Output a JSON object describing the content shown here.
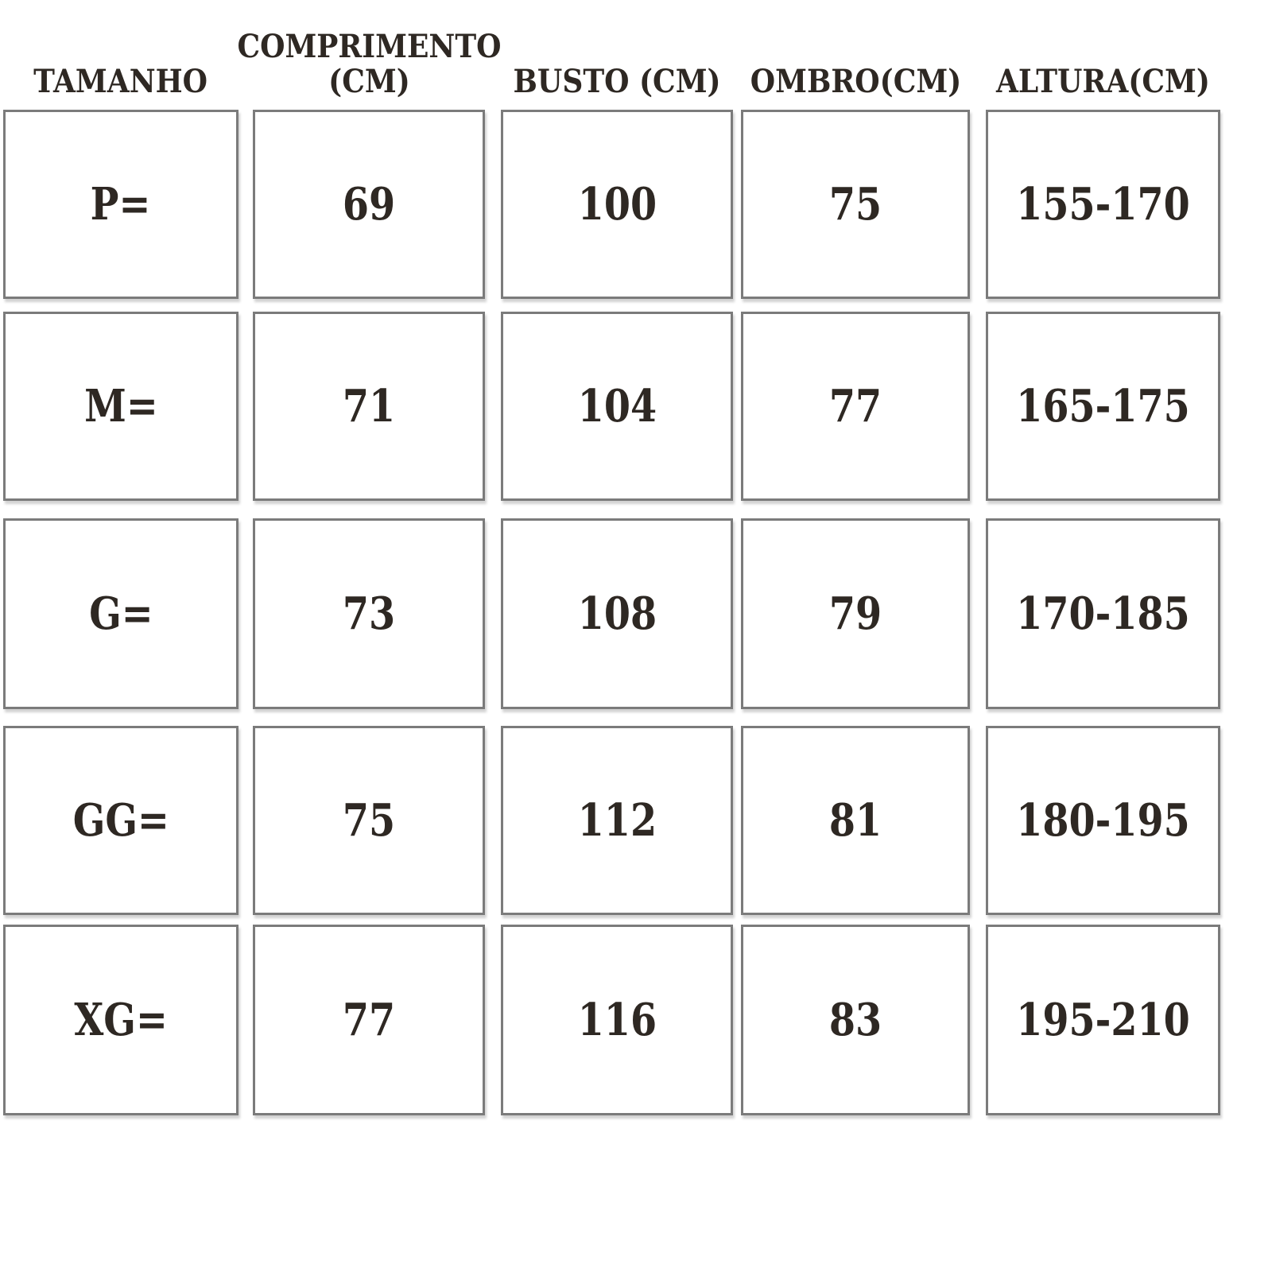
{
  "colors": {
    "text": "#2e2823",
    "border": "#7b7b7b",
    "cell_background": "#ffffff",
    "page_background": "#ffffff"
  },
  "chart_data": {
    "type": "table",
    "title": "",
    "columns": [
      "TAMANHO",
      "COMPRIMENTO\n(CM)",
      "BUSTO (CM)",
      "OMBRO(CM)",
      "ALTURA(CM)"
    ],
    "column_keys": [
      "tamanho",
      "comprimento",
      "busto",
      "ombro",
      "altura"
    ],
    "rows": [
      [
        "P=",
        "69",
        "100",
        "75",
        "155-170"
      ],
      [
        "M=",
        "71",
        "104",
        "77",
        "165-175"
      ],
      [
        "G=",
        "73",
        "108",
        "79",
        "170-185"
      ],
      [
        "GG=",
        "75",
        "112",
        "81",
        "180-195"
      ],
      [
        "XG=",
        "77",
        "116",
        "83",
        "195-210"
      ]
    ],
    "units": "cm",
    "layout": {
      "grid_on": false,
      "header_position": "top",
      "cells_are_individual_boxes": true
    }
  }
}
